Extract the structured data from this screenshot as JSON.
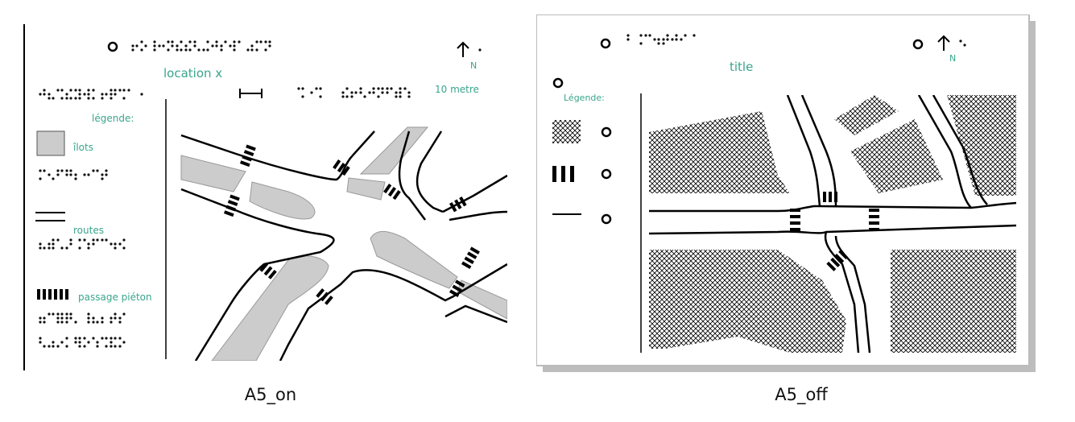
{
  "panels": [
    {
      "id": "A5_on",
      "caption": "A5_on",
      "title": "location x",
      "north_label": "N",
      "scale_label": "10 metre",
      "legend_heading": "légende:",
      "legend_items": [
        {
          "label": "îlots"
        },
        {
          "label": "routes"
        },
        {
          "label": "passage piéton"
        }
      ]
    },
    {
      "id": "A5_off",
      "caption": "A5_off",
      "title": "title",
      "north_label": "N",
      "legend_heading": "Légende:"
    }
  ],
  "colors": {
    "label_text": "#3aa58c",
    "island_fill": "#cccccc",
    "road_stroke": "#000000",
    "shadow": "#bdbdbd"
  },
  "icons": [
    "north-arrow-icon",
    "braille-text",
    "hatch-pattern",
    "crosswalk-symbol",
    "road-line-symbol",
    "scale-bar-icon"
  ]
}
